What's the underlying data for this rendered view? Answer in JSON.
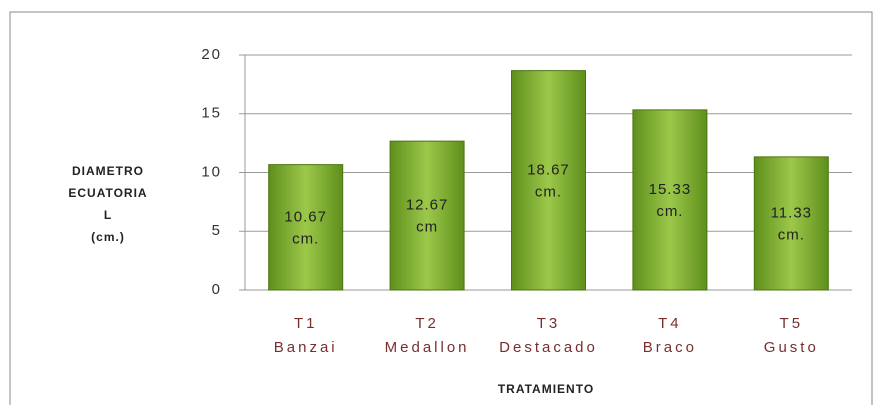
{
  "chart_data": {
    "type": "bar",
    "categories": [
      [
        "T1",
        "Banzai"
      ],
      [
        "T2",
        "Medallon"
      ],
      [
        "T3",
        "Destacado"
      ],
      [
        "T4",
        "Braco"
      ],
      [
        "T5",
        "Gusto"
      ]
    ],
    "values": [
      10.67,
      12.67,
      18.67,
      15.33,
      11.33
    ],
    "value_labels": [
      [
        "10.67",
        "cm."
      ],
      [
        "12.67",
        "cm"
      ],
      [
        "18.67",
        "cm."
      ],
      [
        "15.33",
        "cm."
      ],
      [
        "11.33",
        "cm."
      ]
    ],
    "color": "#7fae2e",
    "ylabel": [
      "DIAMETRO",
      "ECUATORIA",
      "L",
      "(cm.)"
    ],
    "xlabel": "TRATAMIENTO",
    "ylim": [
      0,
      20
    ],
    "yticks": [
      0,
      5,
      10,
      15,
      20
    ],
    "grid": true
  }
}
